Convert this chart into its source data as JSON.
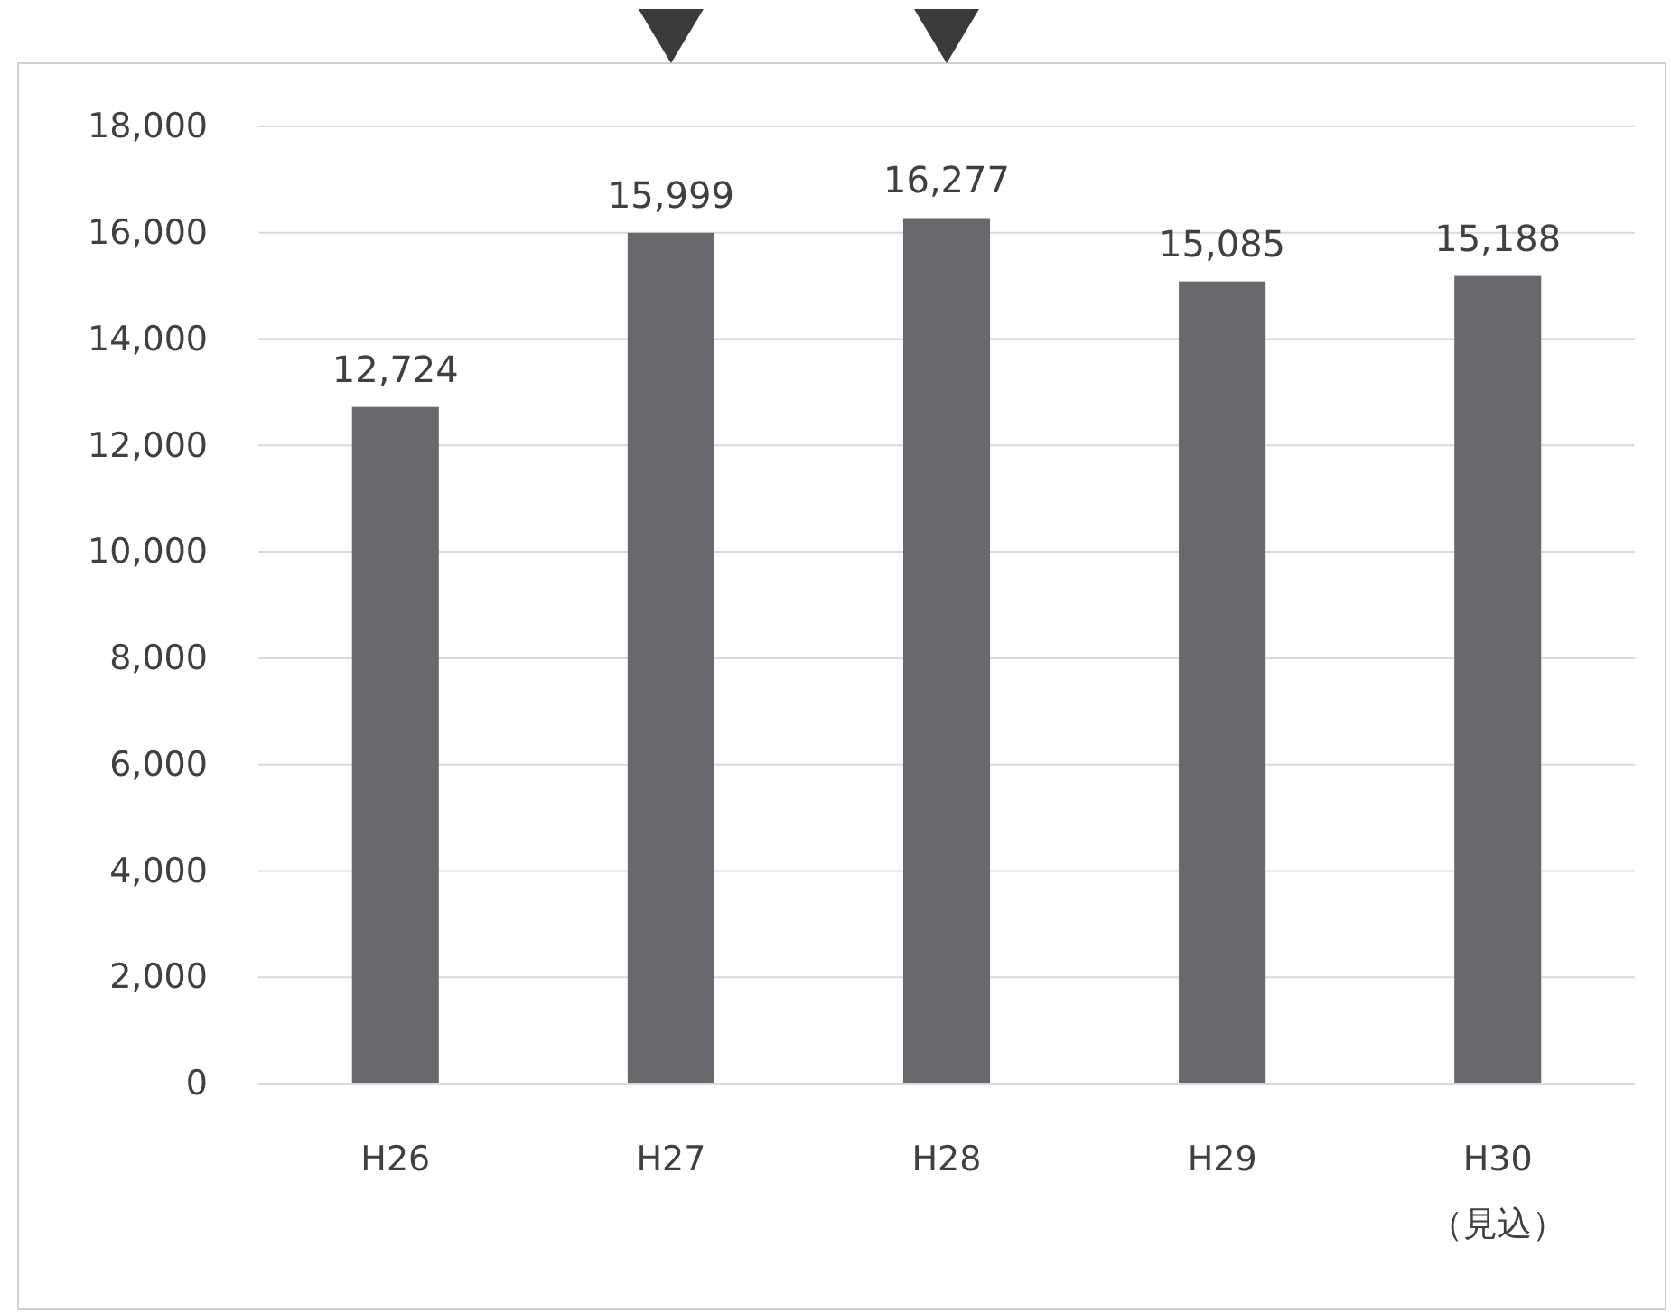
{
  "chart_data": {
    "type": "bar",
    "categories": [
      "H26",
      "H27",
      "H28",
      "H29",
      "H30\n（見込）"
    ],
    "values": [
      12724,
      15999,
      16277,
      15085,
      15188
    ],
    "color": "#69696d",
    "ylim": [
      0,
      18000
    ],
    "yticks": [
      0,
      {
        "value": 2000,
        "label": "2,000"
      },
      {
        "value": 4000,
        "label": "4,000"
      },
      {
        "value": 6000,
        "label": "6,000"
      },
      {
        "value": 8000,
        "label": "8,000"
      },
      {
        "value": 10000,
        "label": "10,000"
      },
      {
        "value": 12000,
        "label": "12,000"
      },
      {
        "value": 14000,
        "label": "14,000"
      },
      {
        "value": 16000,
        "label": "16,000"
      },
      {
        "value": 18000,
        "label": "18,000"
      }
    ],
    "grid": "y",
    "value_labels": [
      "12,724",
      "15,999",
      "16,277",
      "15,085",
      "15,188"
    ]
  }
}
